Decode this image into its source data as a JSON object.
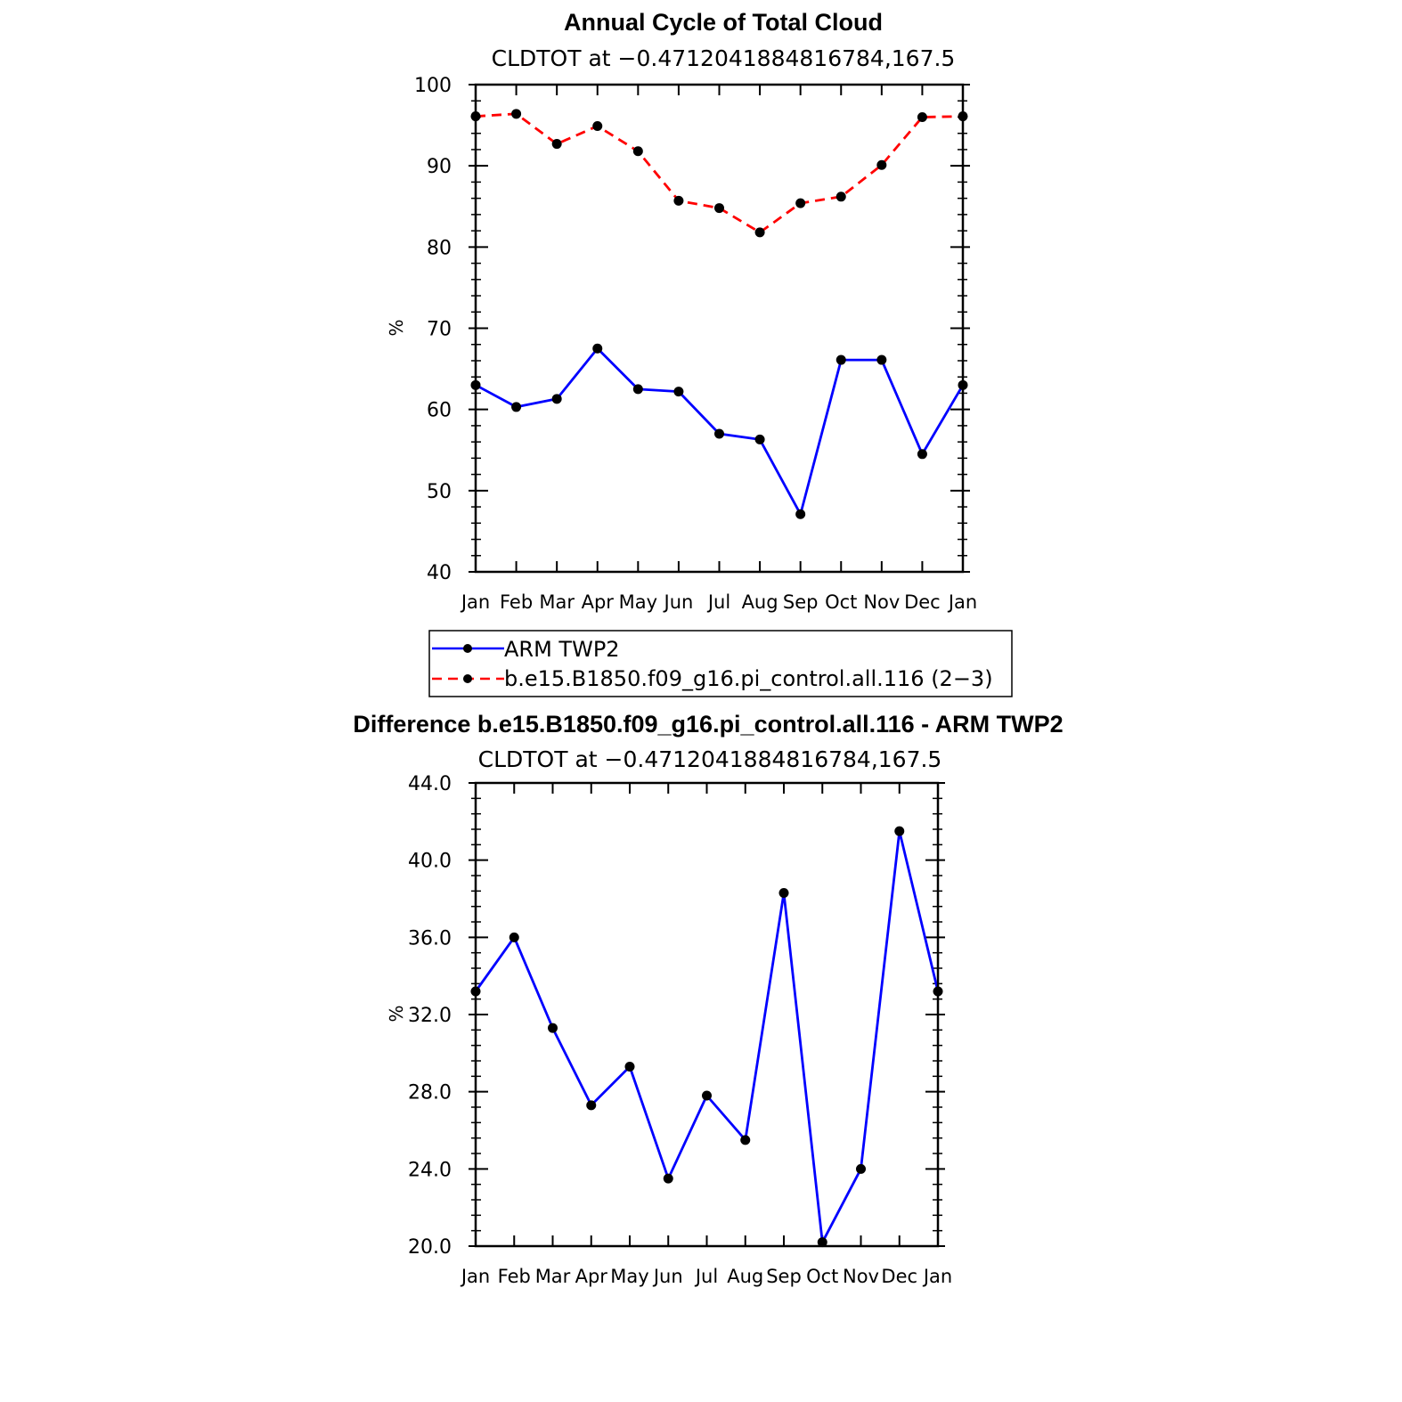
{
  "chart_data": [
    {
      "type": "line",
      "title": "Annual Cycle of Total Cloud",
      "subtitle": "CLDTOT at −0.4712041884816784,167.5",
      "ylabel": "%",
      "ylim": [
        40,
        100
      ],
      "yticks": [
        "40",
        "50",
        "60",
        "70",
        "80",
        "90",
        "100"
      ],
      "categories": [
        "Jan",
        "Feb",
        "Mar",
        "Apr",
        "May",
        "Jun",
        "Jul",
        "Aug",
        "Sep",
        "Oct",
        "Nov",
        "Dec",
        "Jan"
      ],
      "series": [
        {
          "name": "ARM TWP2",
          "color": "#0000ff",
          "dash": "solid",
          "values": [
            63.0,
            60.3,
            61.3,
            67.5,
            62.5,
            62.2,
            57.0,
            56.3,
            47.1,
            66.1,
            66.1,
            54.5,
            63.0
          ]
        },
        {
          "name": "b.e15.B1850.f09_g16.pi_control.all.116 (2−3)",
          "color": "#ff0000",
          "dash": "dashed",
          "values": [
            96.1,
            96.4,
            92.7,
            94.9,
            91.8,
            85.7,
            84.8,
            81.8,
            85.4,
            86.2,
            90.1,
            96.0,
            96.1
          ]
        }
      ],
      "legend": "below"
    },
    {
      "type": "line",
      "title": "Difference b.e15.B1850.f09_g16.pi_control.all.116 - ARM TWP2",
      "subtitle": "CLDTOT at −0.4712041884816784,167.5",
      "ylabel": "%",
      "ylim": [
        20,
        44
      ],
      "yticks": [
        "20.0",
        "24.0",
        "28.0",
        "32.0",
        "36.0",
        "40.0",
        "44.0"
      ],
      "categories": [
        "Jan",
        "Feb",
        "Mar",
        "Apr",
        "May",
        "Jun",
        "Jul",
        "Aug",
        "Sep",
        "Oct",
        "Nov",
        "Dec",
        "Jan"
      ],
      "series": [
        {
          "color": "#0000ff",
          "dash": "solid",
          "values": [
            33.2,
            36.0,
            31.3,
            27.3,
            29.3,
            23.5,
            27.8,
            25.5,
            38.3,
            20.2,
            24.0,
            41.5,
            33.2
          ]
        }
      ]
    }
  ]
}
